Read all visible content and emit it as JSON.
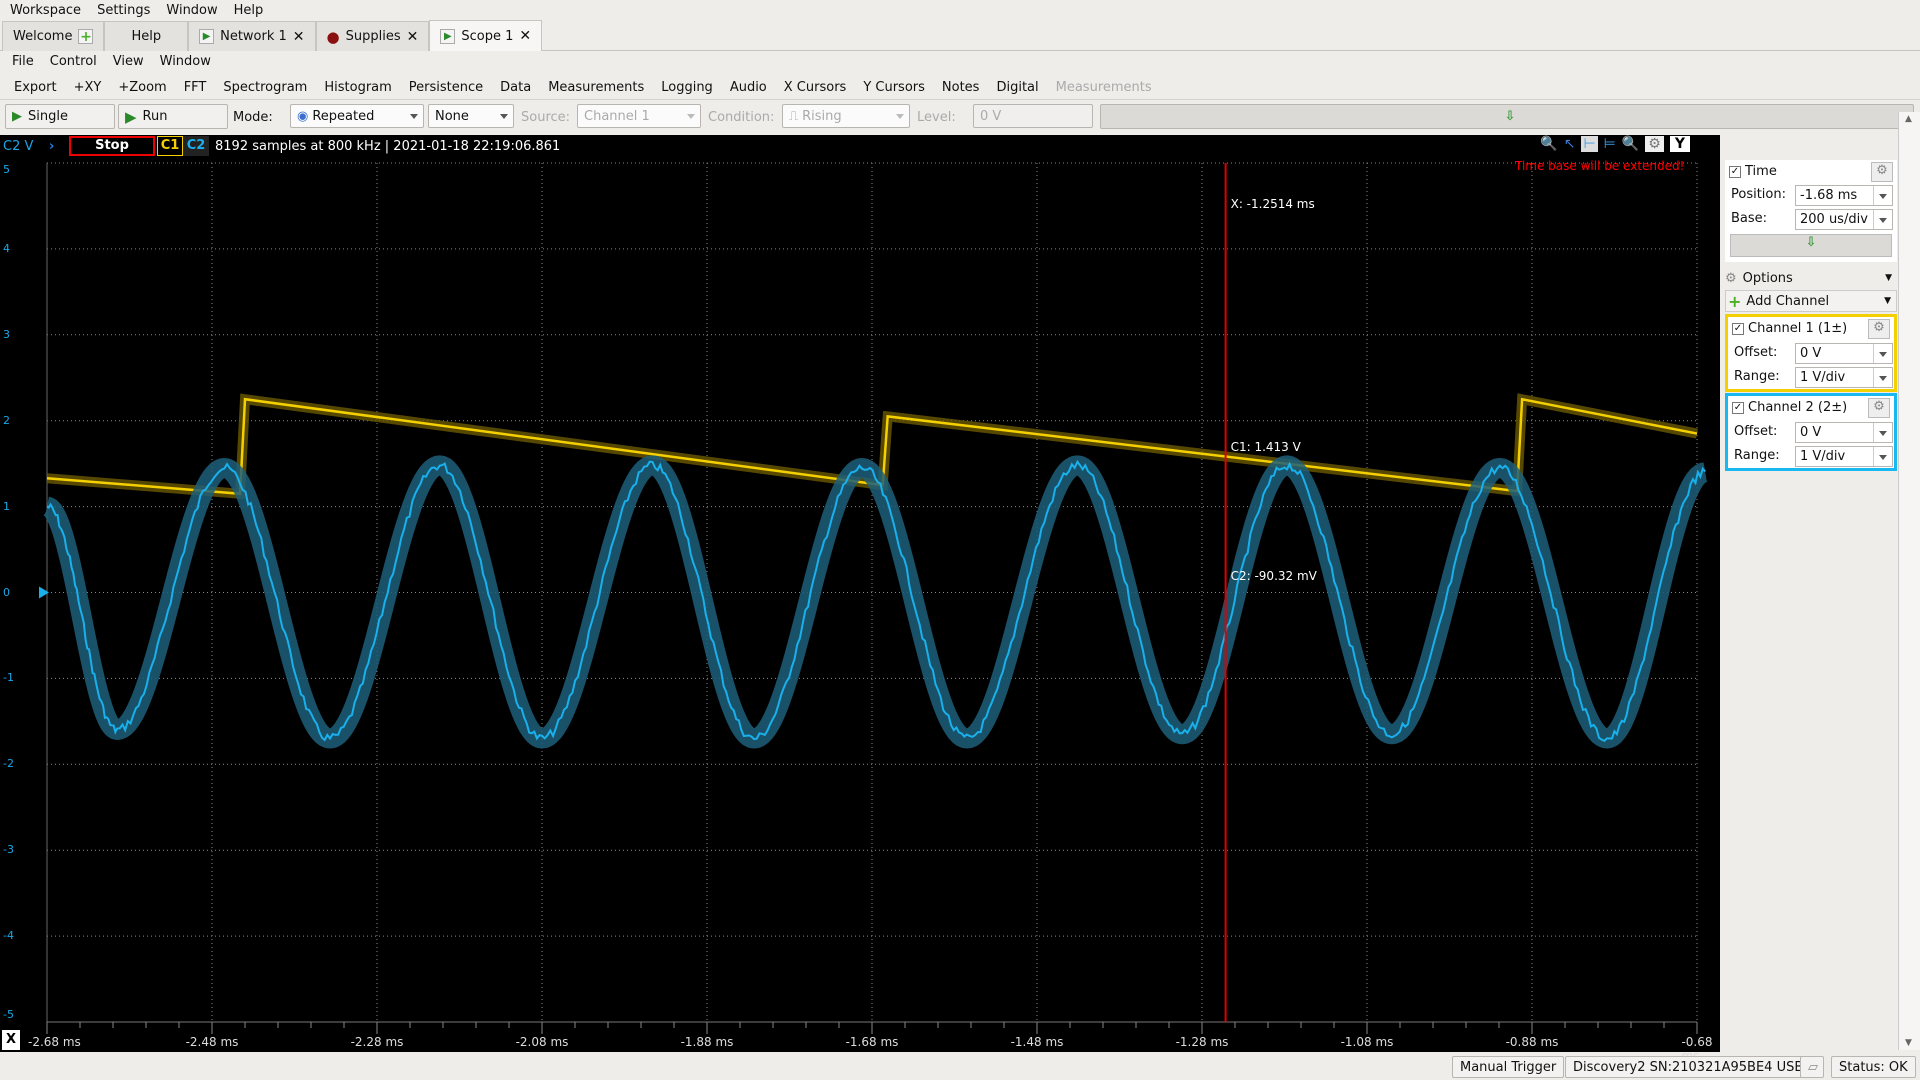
{
  "menubar": [
    "Workspace",
    "Settings",
    "Window",
    "Help"
  ],
  "tabs": [
    {
      "label": "Welcome",
      "icon": "plus-icon"
    },
    {
      "label": "Help"
    },
    {
      "label": "Network 1",
      "icon": "play-icon",
      "closable": true
    },
    {
      "label": "Supplies",
      "icon": "record-icon",
      "closable": true
    },
    {
      "label": "Scope 1",
      "icon": "play-icon",
      "closable": true,
      "active": true
    }
  ],
  "menu2": [
    "File",
    "Control",
    "View",
    "Window"
  ],
  "toolbar": [
    "Export",
    "+XY",
    "+Zoom",
    "FFT",
    "Spectrogram",
    "Histogram",
    "Persistence",
    "Data",
    "Measurements",
    "Logging",
    "Audio",
    "X Cursors",
    "Y Cursors",
    "Notes",
    "Digital",
    "Measurements"
  ],
  "trigger": {
    "single": "Single",
    "run": "Run",
    "mode_label": "Mode:",
    "mode": "Repeated",
    "type": "None",
    "source_label": "Source:",
    "source": "Channel 1",
    "condition_label": "Condition:",
    "condition": "Rising",
    "level_label": "Level:",
    "level": "0 V"
  },
  "scope": {
    "axis_channel": "C2 V",
    "stop": "Stop",
    "c1": "C1",
    "c2": "C2",
    "info": "8192 samples at 800 kHz | 2021-01-18 22:19:06.861",
    "warning": "Time base will be extended!",
    "y_button": "Y",
    "x_button": "X",
    "cursor": {
      "x": "X: -1.2514 ms",
      "c1": "C1: 1.413 V",
      "c2": "C2: -90.32 mV"
    }
  },
  "colors": {
    "c1": "#f5d000",
    "c2": "#1ab0ec",
    "cursor": "#e00000",
    "warning": "#ff0000"
  },
  "chart_data": {
    "type": "line",
    "xlabel": "",
    "ylabel": "C2 V",
    "xlim": [
      -2.68,
      -0.68
    ],
    "ylim": [
      -5,
      5
    ],
    "grid": true,
    "x_ticks": [
      "-2.68 ms",
      "-2.48 ms",
      "-2.28 ms",
      "-2.08 ms",
      "-1.88 ms",
      "-1.68 ms",
      "-1.48 ms",
      "-1.28 ms",
      "-1.08 ms",
      "-0.88 ms",
      "-0.68 ms"
    ],
    "y_ticks": [
      "5",
      "4",
      "3",
      "2",
      "1",
      "0",
      "-1",
      "-2",
      "-3",
      "-4",
      "-5"
    ],
    "cursor_x_ms": -1.2514,
    "series": [
      {
        "name": "C1",
        "points": [
          [
            -2.68,
            1.33
          ],
          [
            -2.446,
            1.15
          ],
          [
            -2.44,
            2.25
          ],
          [
            -1.667,
            1.25
          ],
          [
            -1.661,
            2.05
          ],
          [
            -0.898,
            1.18
          ],
          [
            -0.892,
            2.25
          ],
          [
            -0.68,
            1.85
          ]
        ]
      },
      {
        "name": "C2",
        "points": [
          [
            -2.68,
            1.0
          ],
          [
            -2.595,
            -1.6
          ],
          [
            -2.465,
            1.45
          ],
          [
            -2.337,
            -1.7
          ],
          [
            -2.204,
            1.48
          ],
          [
            -2.08,
            -1.7
          ],
          [
            -1.946,
            1.48
          ],
          [
            -1.823,
            -1.7
          ],
          [
            -1.692,
            1.45
          ],
          [
            -1.565,
            -1.7
          ],
          [
            -1.431,
            1.48
          ],
          [
            -1.304,
            -1.65
          ],
          [
            -1.177,
            1.48
          ],
          [
            -1.05,
            -1.65
          ],
          [
            -0.919,
            1.45
          ],
          [
            -0.789,
            -1.7
          ],
          [
            -0.67,
            1.4
          ]
        ]
      }
    ]
  },
  "panel": {
    "time": {
      "title": "Time",
      "position_label": "Position:",
      "position": "-1.68 ms",
      "base_label": "Base:",
      "base": "200 us/div"
    },
    "options": "Options",
    "add_channel": "Add Channel",
    "ch1": {
      "title": "Channel 1 (1±)",
      "offset_label": "Offset:",
      "offset": "0 V",
      "range_label": "Range:",
      "range": "1 V/div"
    },
    "ch2": {
      "title": "Channel 2 (2±)",
      "offset_label": "Offset:",
      "offset": "0 V",
      "range_label": "Range:",
      "range": "1 V/div"
    }
  },
  "statusbar": {
    "manual_trigger": "Manual Trigger",
    "device": "Discovery2 SN:210321A95BE4 USB",
    "status": "Status: OK"
  }
}
